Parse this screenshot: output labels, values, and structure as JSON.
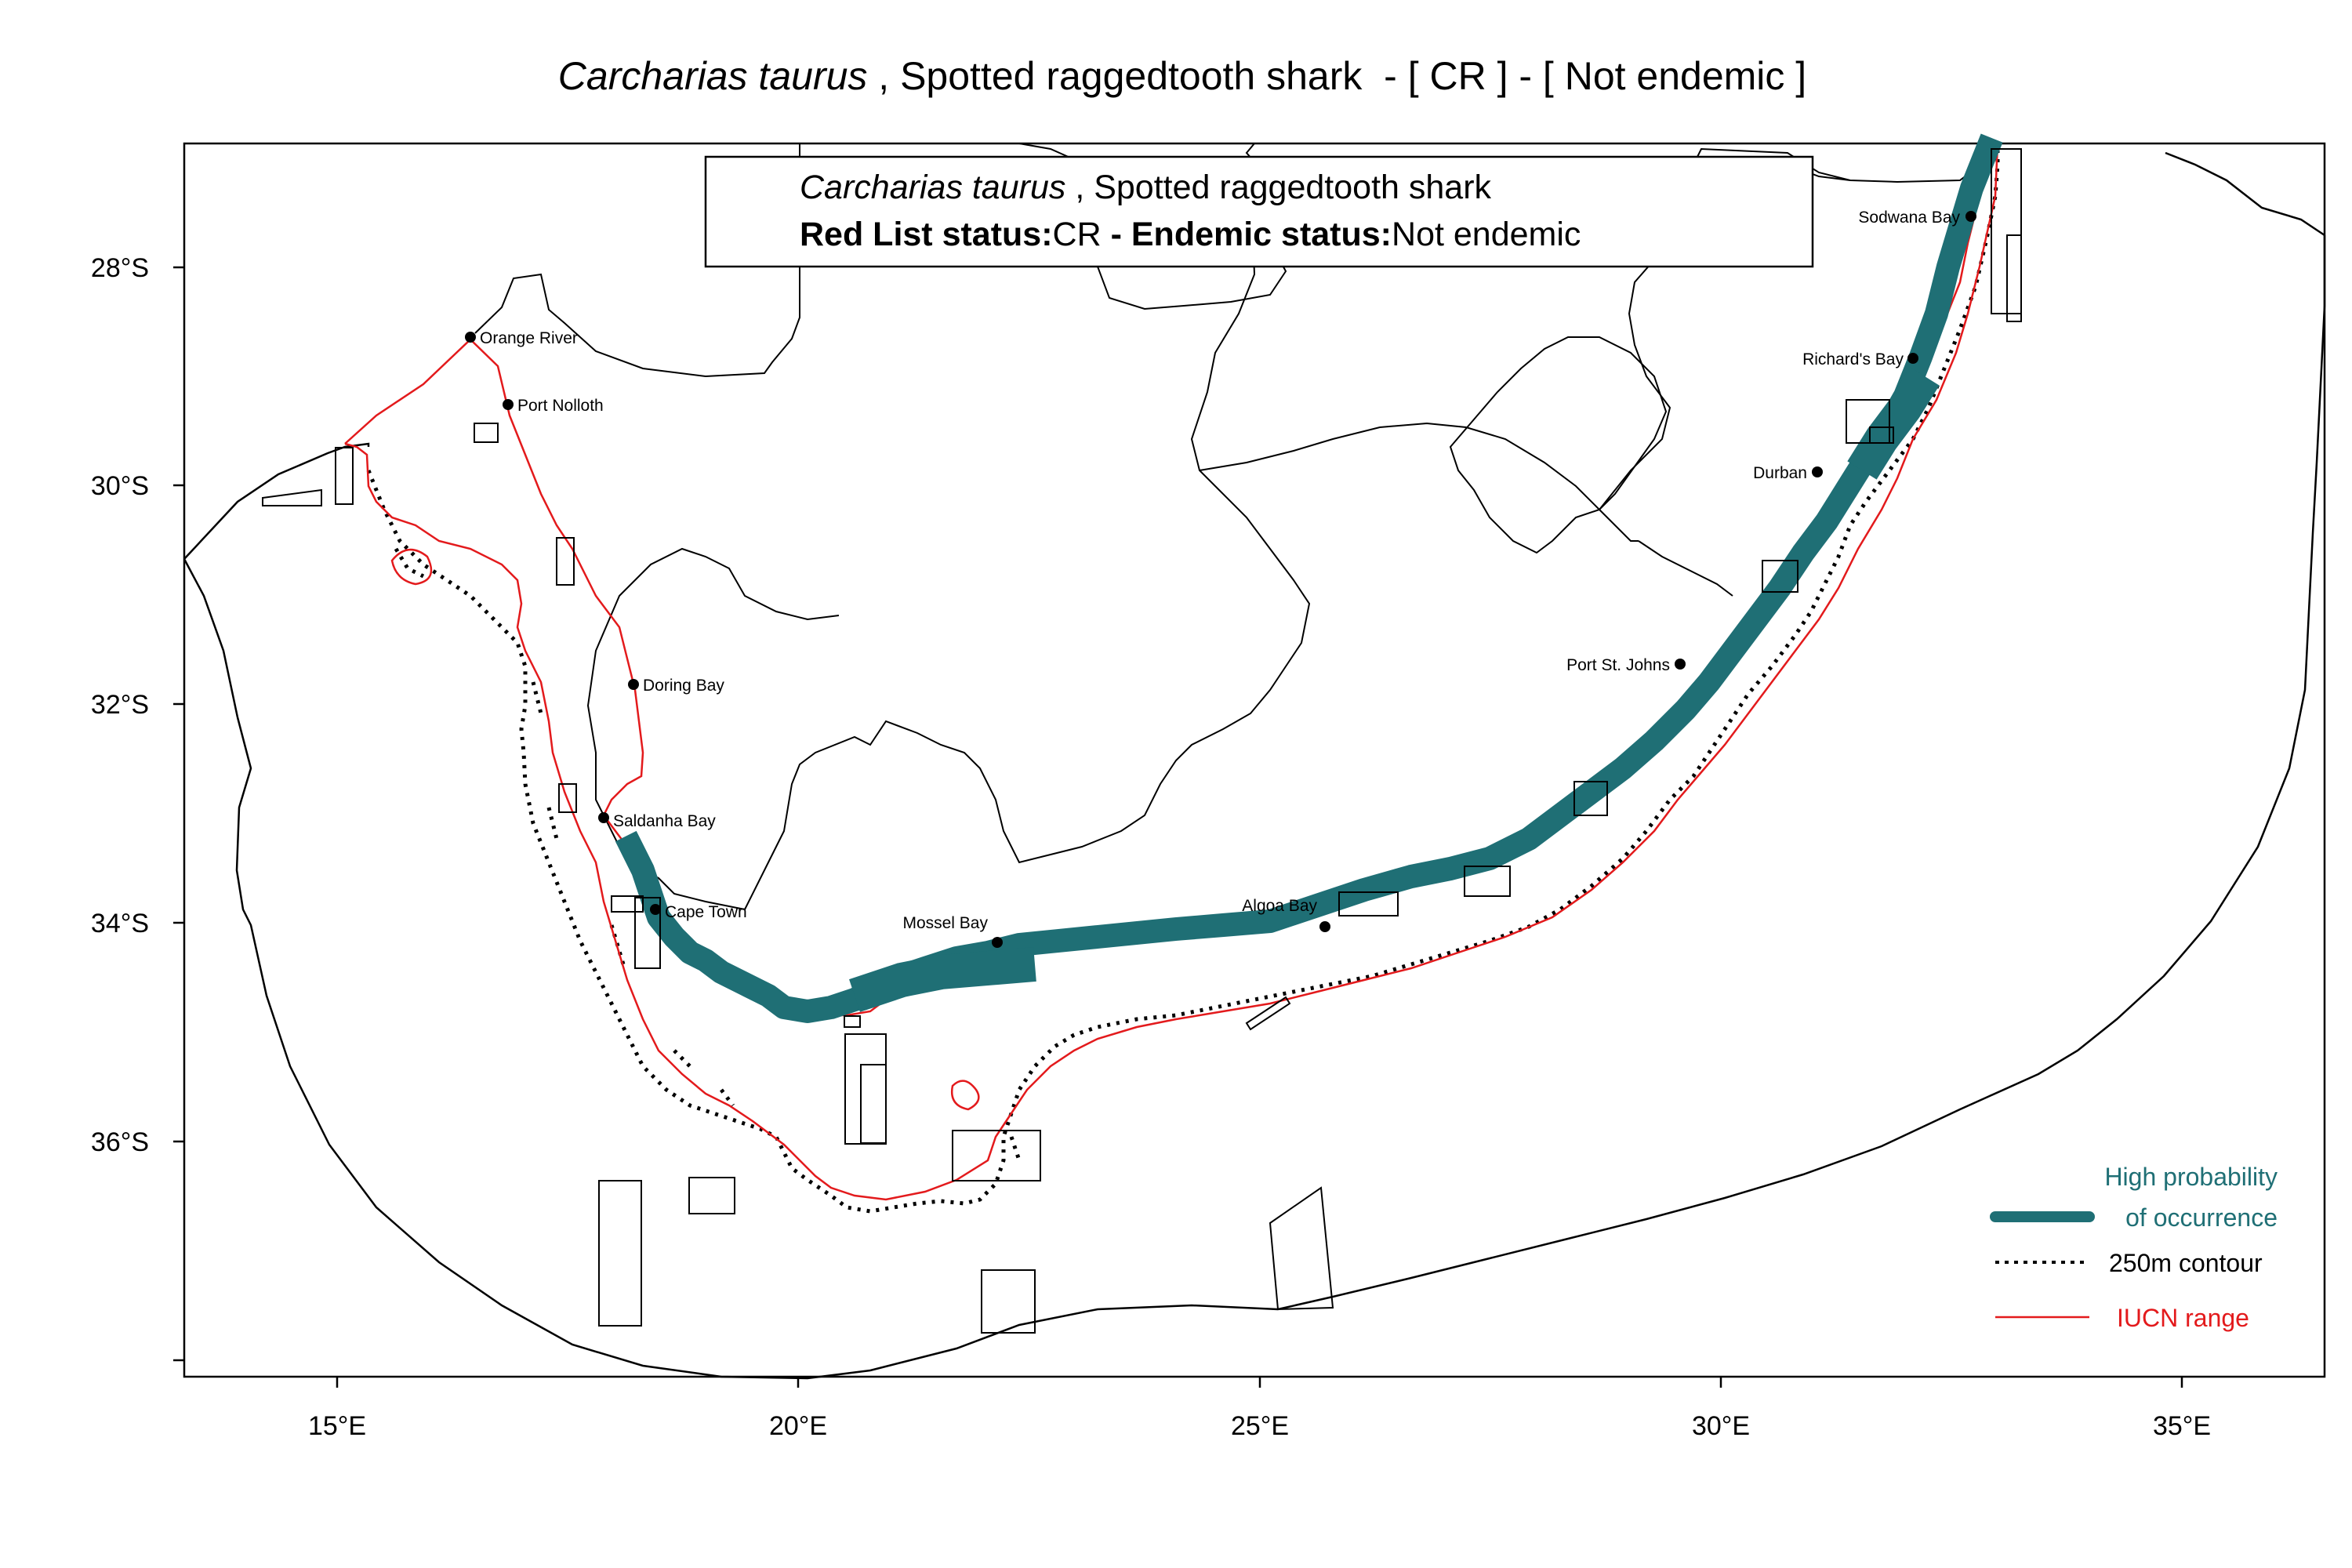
{
  "title": {
    "species": "Carcharias taurus",
    "common": " , Spotted raggedtooth shark  - [ CR ] - [ Not endemic ]"
  },
  "info_box": {
    "species": "Carcharias taurus",
    "common": " , Spotted raggedtooth shark",
    "status_label": "Red List status:",
    "status_value": "CR",
    "endemic_label": " - Endemic status:",
    "endemic_value": "Not endemic"
  },
  "axes": {
    "x_ticks": [
      "15°E",
      "20°E",
      "25°E",
      "30°E",
      "35°E"
    ],
    "y_ticks": [
      "28°S",
      "30°S",
      "32°S",
      "34°S",
      "36°S"
    ]
  },
  "places": [
    {
      "name": "Orange River"
    },
    {
      "name": "Port Nolloth"
    },
    {
      "name": "Doring Bay"
    },
    {
      "name": "Saldanha Bay"
    },
    {
      "name": "Cape Town"
    },
    {
      "name": "Mossel Bay"
    },
    {
      "name": "Algoa Bay"
    },
    {
      "name": "Port St. Johns"
    },
    {
      "name": "Durban"
    },
    {
      "name": "Richard's Bay"
    },
    {
      "name": "Sodwana Bay"
    }
  ],
  "legend": {
    "occurrence_line1": "High probability",
    "occurrence_line2": "of occurrence",
    "contour": "250m contour",
    "iucn": "IUCN range"
  },
  "colors": {
    "occurrence": "#1f6f75",
    "iucn": "#e31a1c",
    "contour": "#000000"
  }
}
